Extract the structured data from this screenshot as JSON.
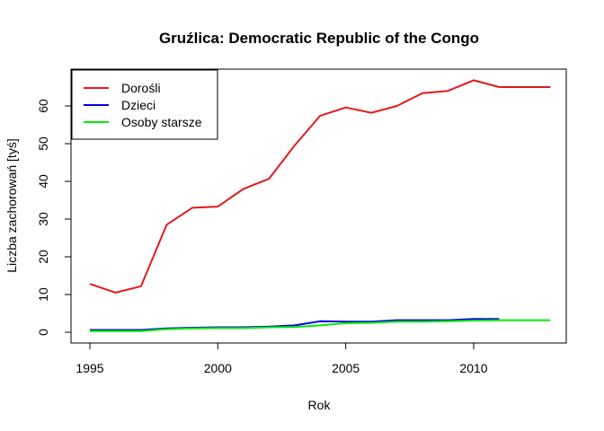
{
  "chart_data": {
    "type": "line",
    "title": "Gruźlica: Democratic Republic of the Congo",
    "xlabel": "Rok",
    "ylabel": "Liczba zachorowań [tyś]",
    "xlim": [
      1995,
      2013
    ],
    "ylim": [
      0,
      67
    ],
    "x_ticks": [
      1995,
      2000,
      2005,
      2010
    ],
    "y_ticks": [
      0,
      10,
      20,
      30,
      40,
      50,
      60
    ],
    "grid": false,
    "legend_position": "top-left",
    "x": [
      1995,
      1996,
      1997,
      1998,
      1999,
      2000,
      2001,
      2002,
      2003,
      2004,
      2005,
      2006,
      2007,
      2008,
      2009,
      2010,
      2011,
      2012,
      2013
    ],
    "series": [
      {
        "name": "Dorośli",
        "color": "#e31a1c",
        "values": [
          12.8,
          10.5,
          12.2,
          28.5,
          33.0,
          33.3,
          38.0,
          40.7,
          49.5,
          57.4,
          59.6,
          58.2,
          60.0,
          63.4,
          64.0,
          66.8,
          65.0,
          65.0,
          65.0
        ]
      },
      {
        "name": "Dzieci",
        "color": "#0000ee",
        "values": [
          0.6,
          0.6,
          0.6,
          1.0,
          1.2,
          1.3,
          1.3,
          1.5,
          1.8,
          2.9,
          2.8,
          2.8,
          3.2,
          3.2,
          3.2,
          3.5,
          3.5,
          null,
          null
        ]
      },
      {
        "name": "Osoby starsze",
        "color": "#00ee00",
        "values": [
          0.3,
          0.3,
          0.3,
          0.8,
          1.0,
          1.1,
          1.1,
          1.3,
          1.4,
          1.8,
          2.4,
          2.5,
          2.8,
          2.8,
          2.9,
          3.1,
          3.2,
          3.2,
          3.2
        ]
      }
    ]
  }
}
